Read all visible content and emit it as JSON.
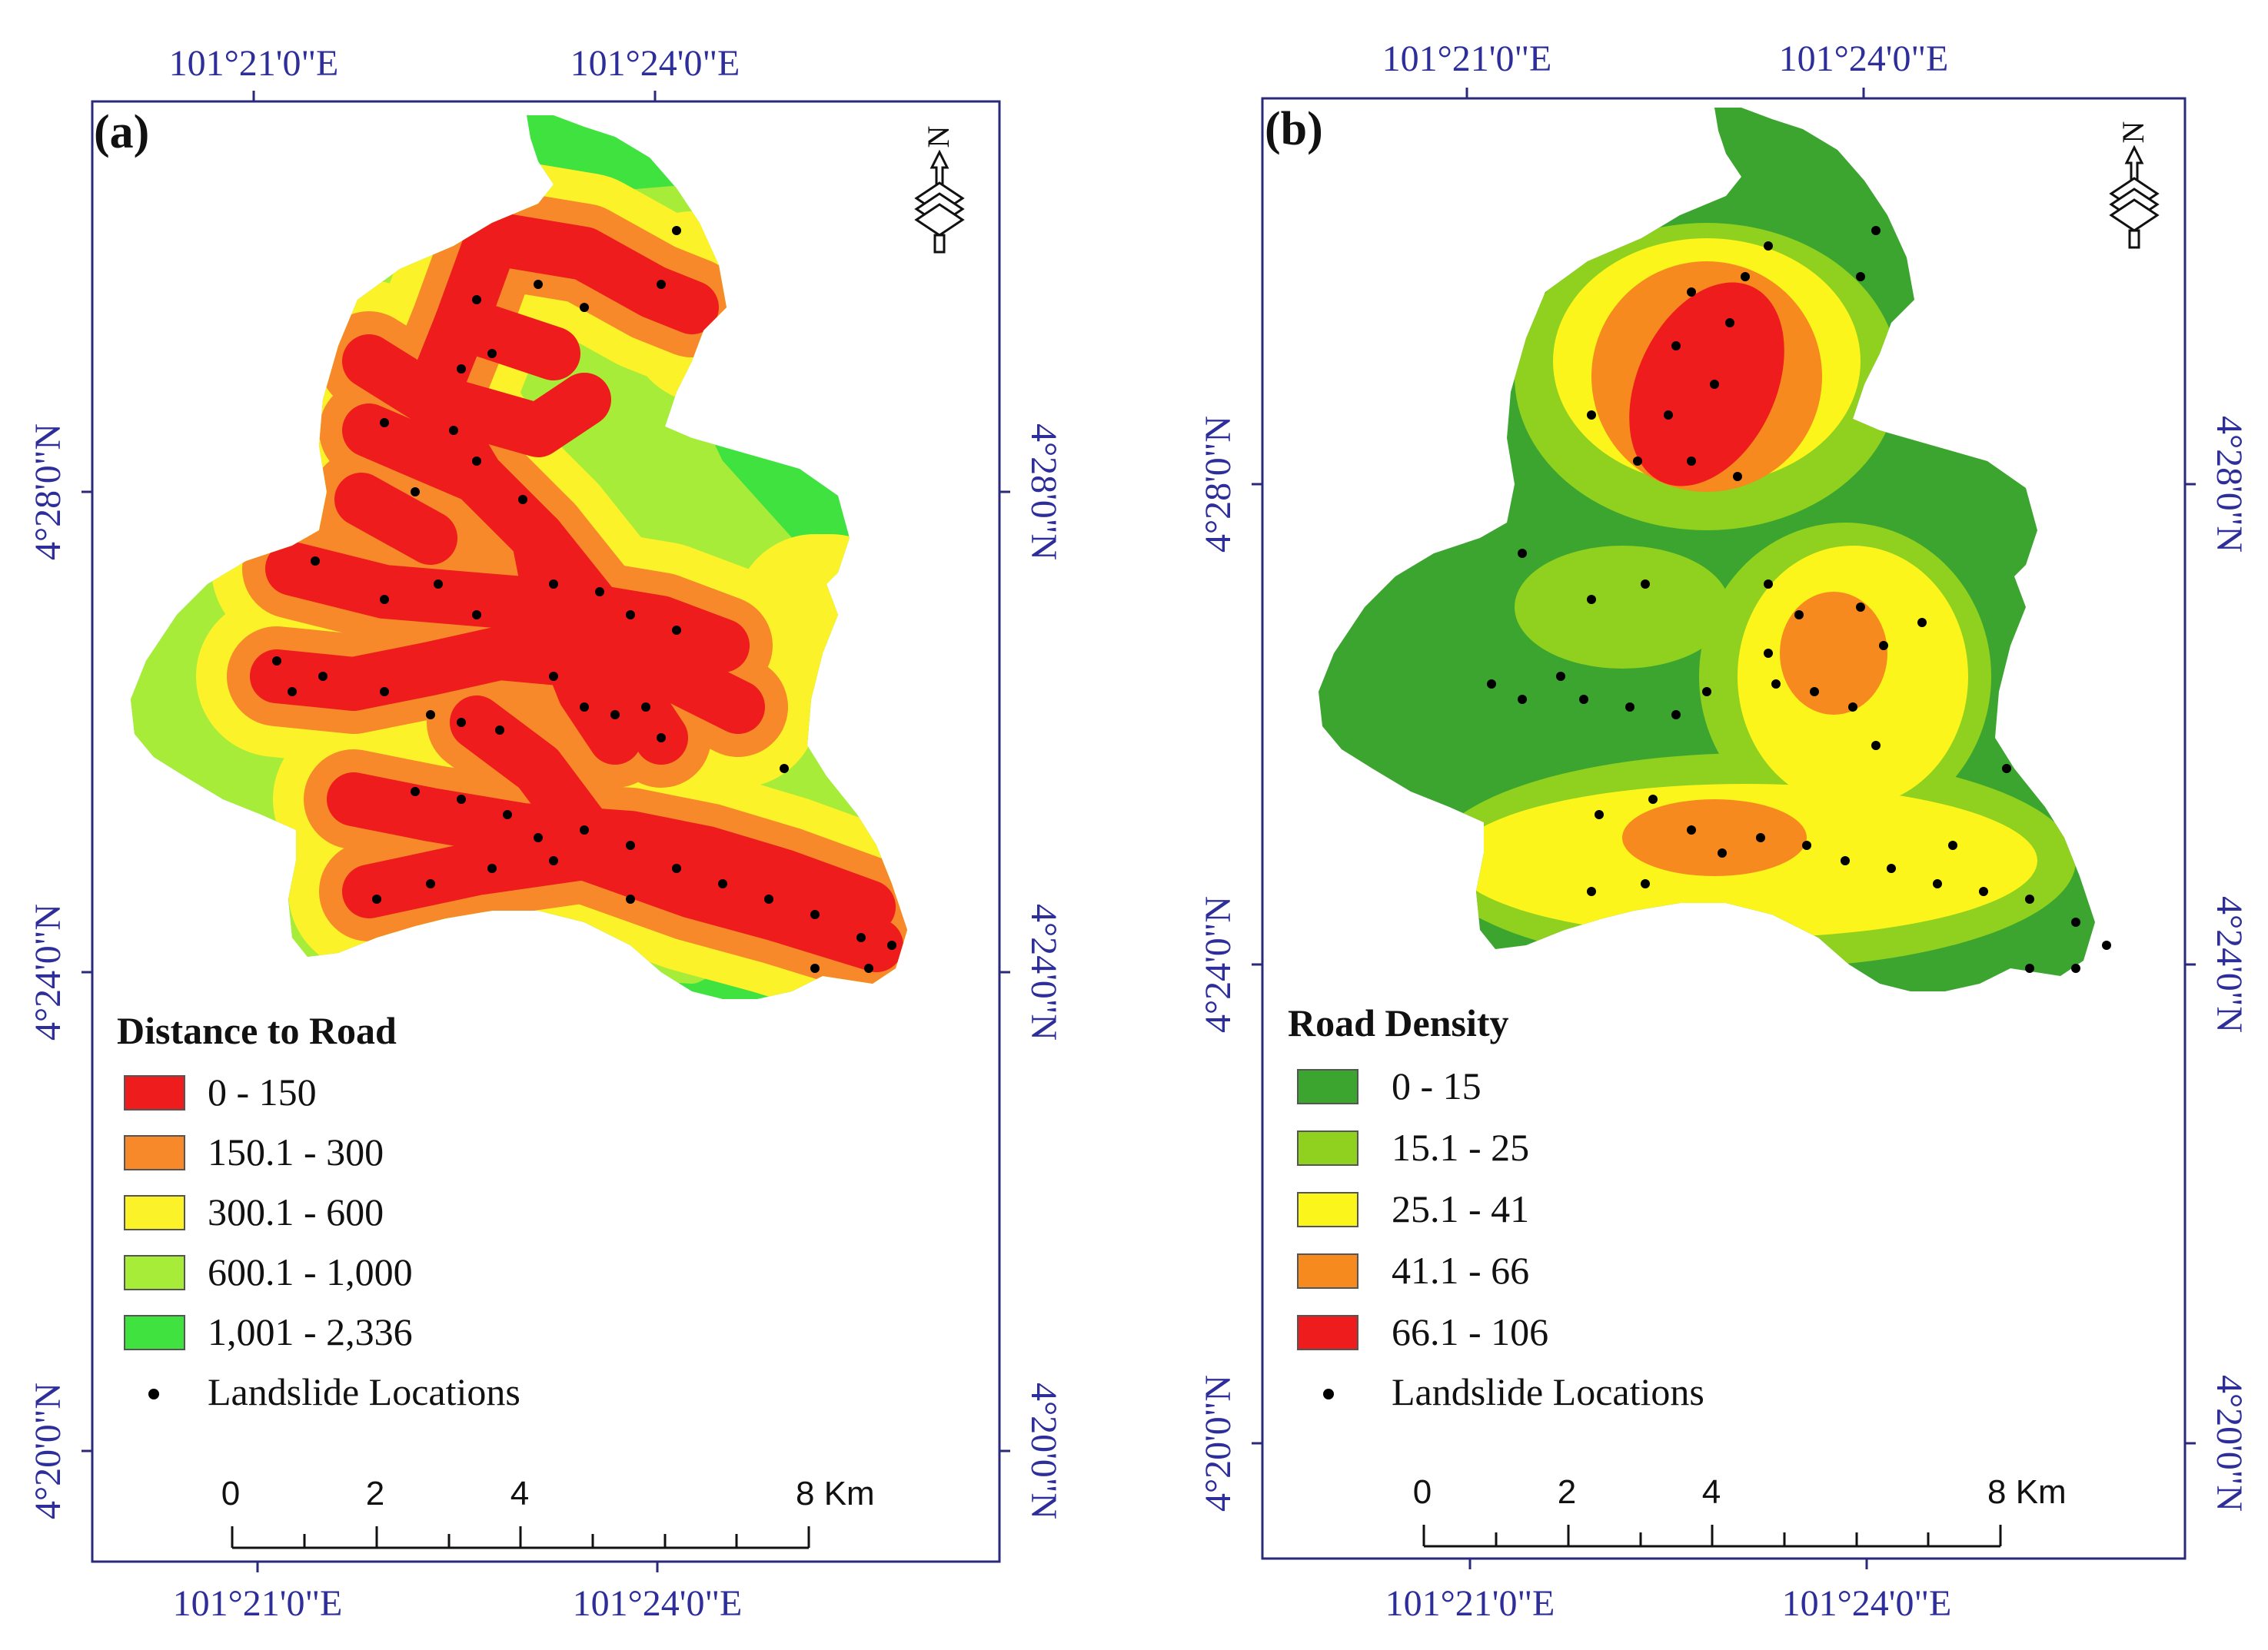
{
  "panels": [
    {
      "letter": "(a)",
      "top_lon": [
        "101°21'0\"E",
        "101°24'0\"E"
      ],
      "bottom_lon": [
        "101°21'0\"E",
        "101°24'0\"E"
      ],
      "lat": [
        "4°28'0\"N",
        "4°24'0\"N",
        "4°20'0\"N"
      ],
      "north_label": "N",
      "legend": {
        "title": "Distance to Road",
        "classes": [
          {
            "label": "0 - 150",
            "color": "#ee1c1c"
          },
          {
            "label": "150.1 - 300",
            "color": "#f7892a"
          },
          {
            "label": "300.1 - 600",
            "color": "#fbf22a"
          },
          {
            "label": "600.1 - 1,000",
            "color": "#a8ec3a"
          },
          {
            "label": "1,001 - 2,336",
            "color": "#3fe23f"
          }
        ],
        "points_label": "Landslide Locations"
      },
      "scale": {
        "labels": [
          "0",
          "2",
          "4",
          "8 Km"
        ]
      }
    },
    {
      "letter": "(b)",
      "top_lon": [
        "101°21'0\"E",
        "101°24'0\"E"
      ],
      "bottom_lon": [
        "101°21'0\"E",
        "101°24'0\"E"
      ],
      "lat": [
        "4°28'0\"N",
        "4°24'0\"N",
        "4°20'0\"N"
      ],
      "north_label": "N",
      "legend": {
        "title": "Road Density",
        "classes": [
          {
            "label": "0 - 15",
            "color": "#3ca530"
          },
          {
            "label": "15.1 - 25",
            "color": "#8fd11e"
          },
          {
            "label": "25.1 - 41",
            "color": "#fcf51c"
          },
          {
            "label": "41.1 - 66",
            "color": "#f78a1e"
          },
          {
            "label": "66.1 - 106",
            "color": "#ee1c1c"
          }
        ],
        "points_label": "Landslide Locations"
      },
      "scale": {
        "labels": [
          "0",
          "2",
          "4",
          "8 Km"
        ]
      }
    }
  ]
}
